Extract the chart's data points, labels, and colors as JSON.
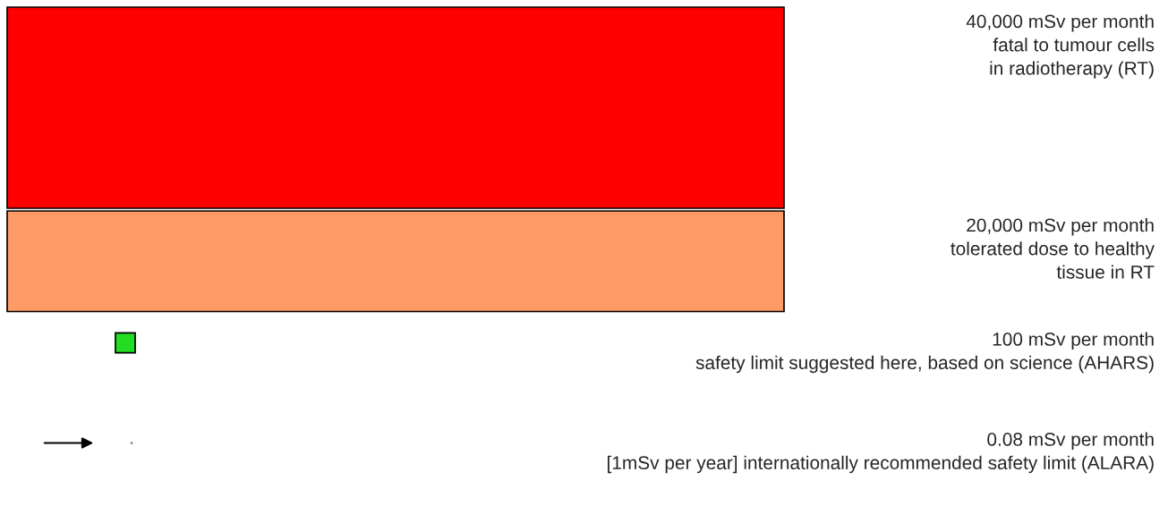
{
  "chart_data": {
    "type": "other",
    "categories": [
      "fatal to tumour cells\nin radiotherapy (RT)",
      "tolerated dose to healthy\ntissue in RT",
      "safety limit suggested here, based on science (AHARS)",
      "[1mSv per year] internationally recommended safety limit (ALARA)"
    ],
    "values": [
      40000,
      20000,
      100,
      0.08
    ],
    "value_labels": [
      "40,000 mSv per month",
      "20,000 mSv per month",
      "100 mSv per month",
      "0.08 mSv per month"
    ],
    "colors": [
      "#ff0000",
      "#ff9966",
      "#22dd22",
      "#888888"
    ]
  }
}
